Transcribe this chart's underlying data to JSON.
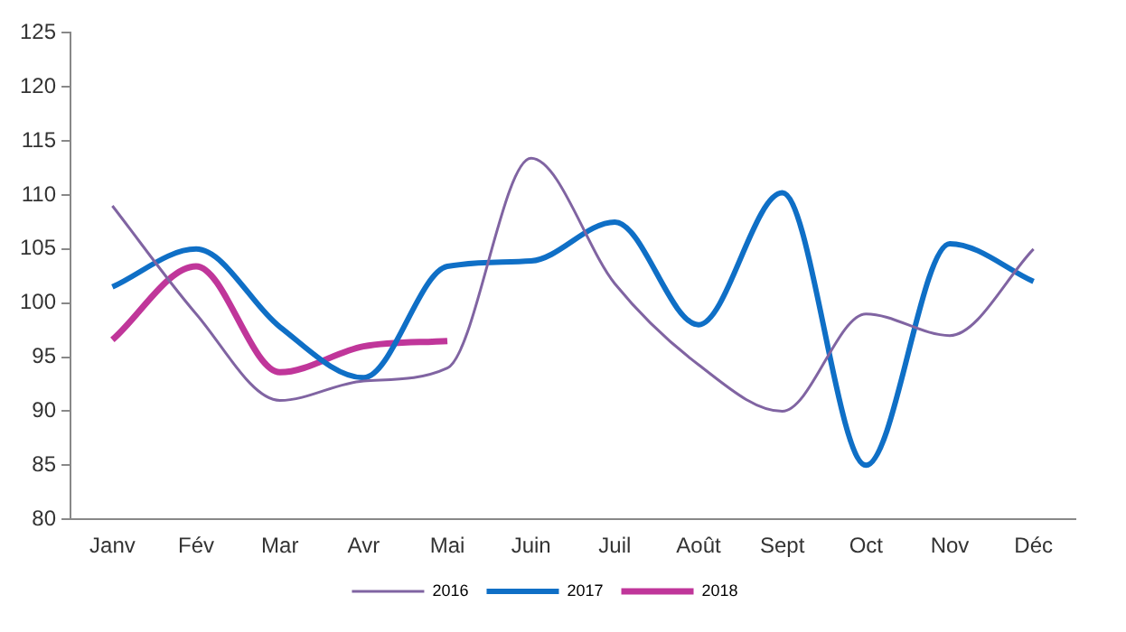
{
  "chart_data": {
    "type": "line",
    "categories": [
      "Janv",
      "Fév",
      "Mar",
      "Avr",
      "Mai",
      "Juin",
      "Juil",
      "Août",
      "Sept",
      "Oct",
      "Nov",
      "Déc"
    ],
    "ylim": [
      80,
      125
    ],
    "yticks": [
      80,
      85,
      90,
      95,
      100,
      105,
      110,
      115,
      120,
      125
    ],
    "grid": false,
    "legend": "bottom",
    "series": [
      {
        "name": "2016",
        "color": "#8064a2",
        "values": [
          109,
          99,
          91,
          92.8,
          94,
          113.4,
          101.8,
          94.3,
          90,
          99,
          97,
          105
        ]
      },
      {
        "name": "2017",
        "color": "#0f6fc6",
        "values": [
          101.5,
          105,
          97.8,
          93.1,
          103.4,
          103.9,
          107.5,
          98,
          110.2,
          85,
          105.5,
          102
        ]
      },
      {
        "name": "2018",
        "color": "#c0369a",
        "values": [
          96.6,
          103.4,
          93.6,
          96,
          96.5,
          null,
          null,
          null,
          null,
          null,
          null,
          null
        ]
      }
    ]
  }
}
